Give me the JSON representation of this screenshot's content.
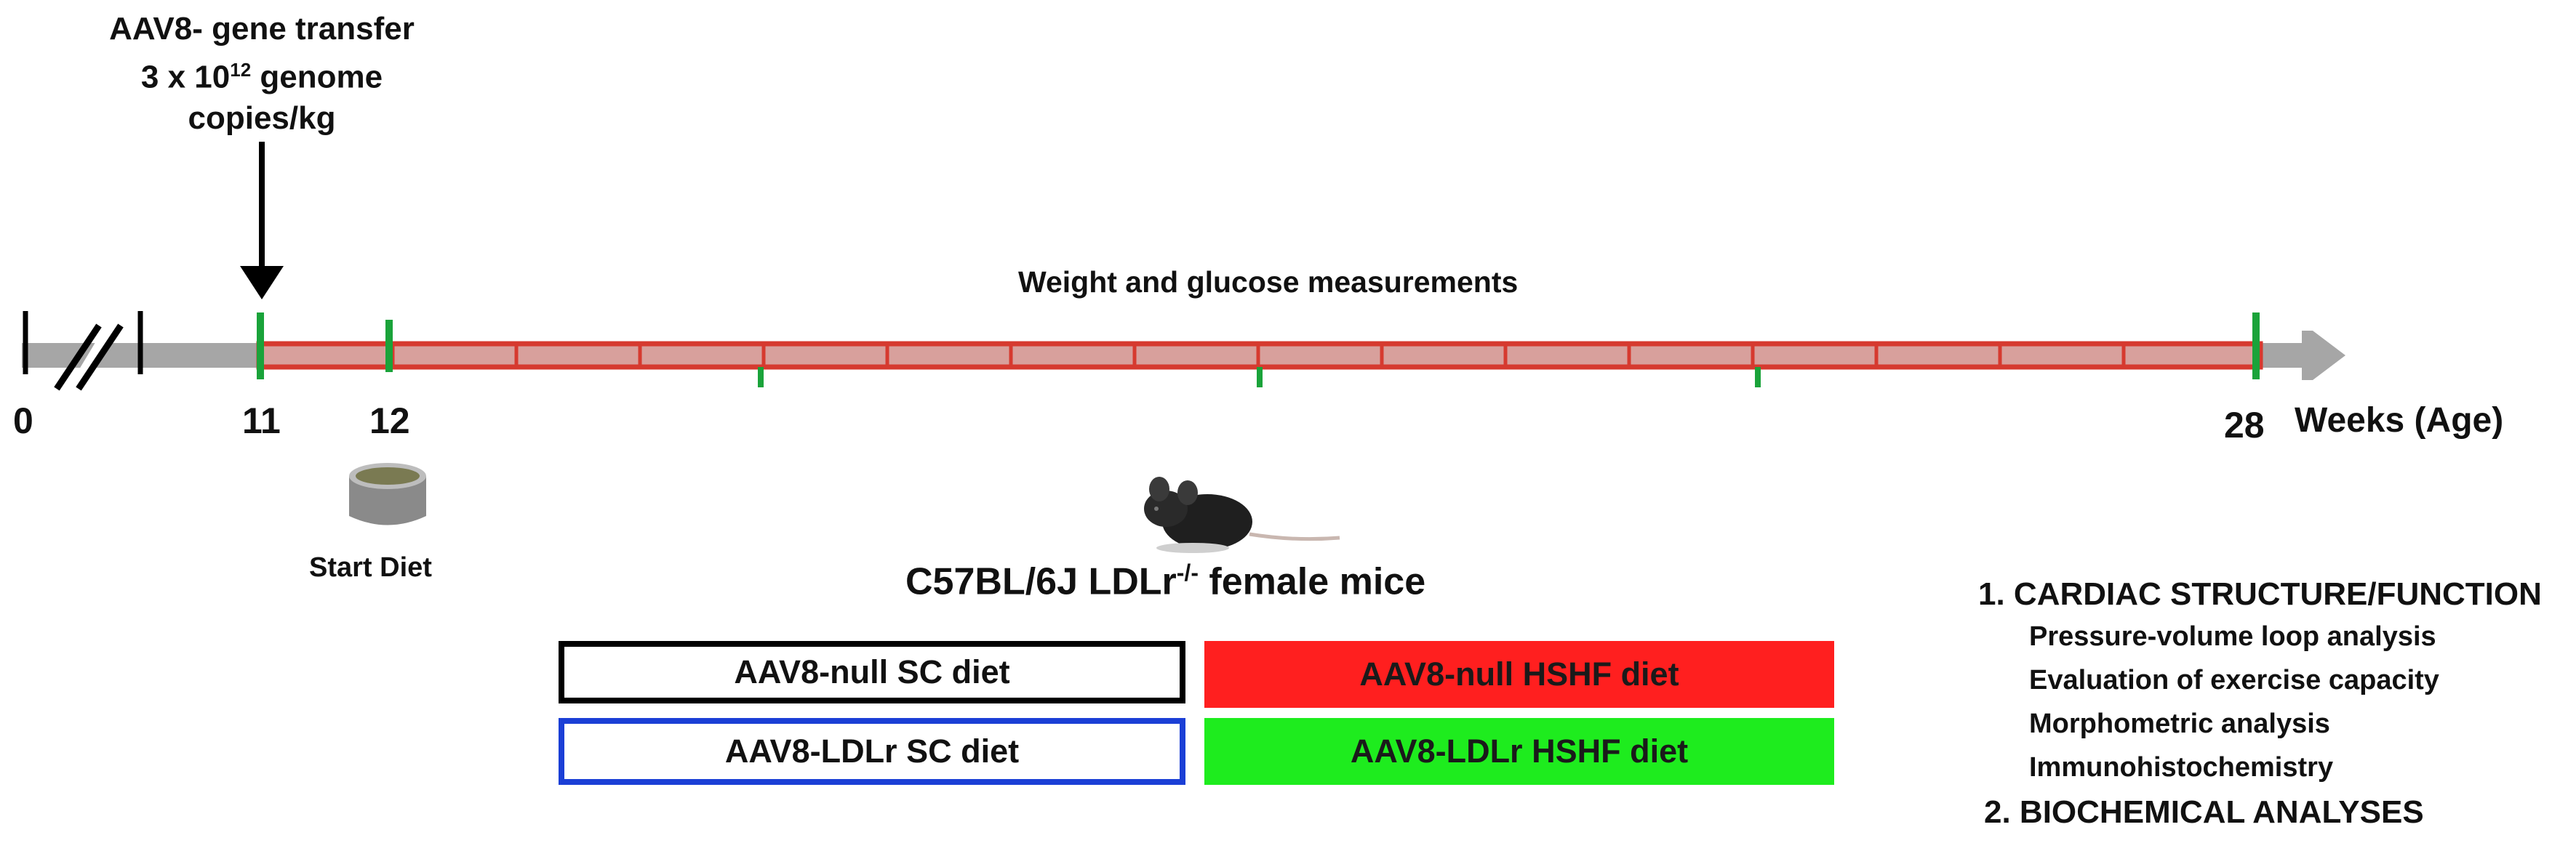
{
  "injection": {
    "line1": "AAV8- gene transfer",
    "line2_prefix": "3 x 10",
    "line2_sup": "12",
    "line2_suffix": " genome",
    "line3": "copies/kg"
  },
  "timeline": {
    "measurement_label": "Weight  and glucose measurements",
    "ticks": [
      "0",
      "11",
      "12",
      "28"
    ],
    "unit_label": "Weeks (Age)",
    "start_diet_label": "Start Diet",
    "colors": {
      "axis": "#a6a6a6",
      "diet_bar": "#d63a2f",
      "marker": "#1aa33a"
    }
  },
  "strain": {
    "main": "C57BL/6J LDLr",
    "sup": "-/-",
    "suffix": " female mice"
  },
  "groups": [
    {
      "label": "AAV8-null SC diet",
      "style": "outline",
      "color": "#000000"
    },
    {
      "label": "AAV8-null HSHF diet",
      "style": "filled",
      "color": "#ff1f1f"
    },
    {
      "label": "AAV8-LDLr SC diet",
      "style": "outline",
      "color": "#1b3fd6"
    },
    {
      "label": "AAV8-LDLr HSHF diet",
      "style": "filled",
      "color": "#1eec1e"
    }
  ],
  "outcomes": [
    {
      "heading": "1. CARDIAC STRUCTURE/FUNCTION",
      "items": [
        "Pressure-volume loop  analysis",
        "Evaluation of exercise capacity",
        "Morphometric analysis",
        "Immunohistochemistry"
      ]
    },
    {
      "heading": "2. BIOCHEMICAL ANALYSES",
      "items": []
    }
  ]
}
